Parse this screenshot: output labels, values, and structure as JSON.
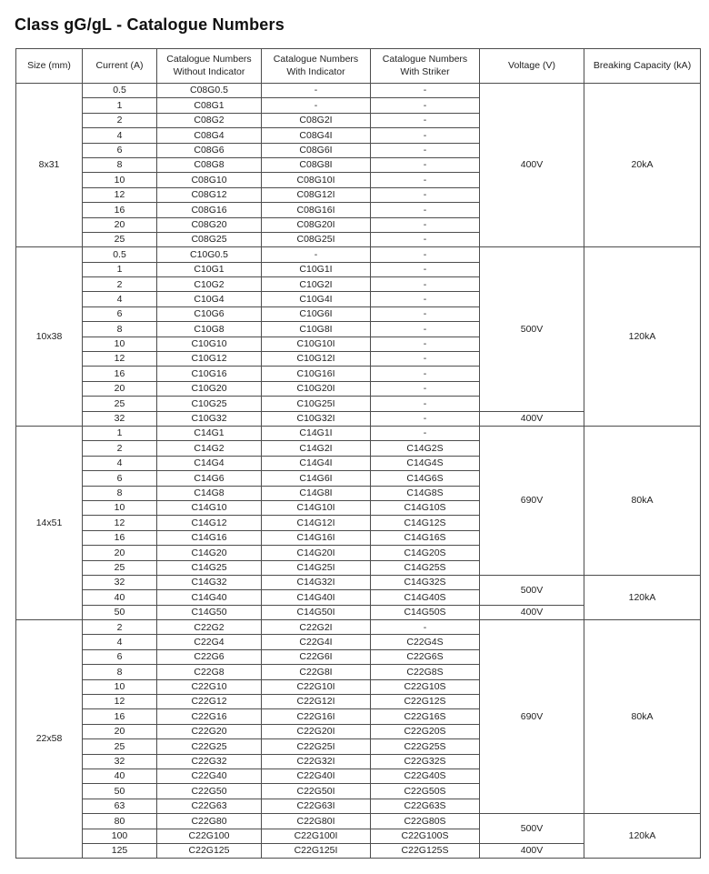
{
  "page": {
    "title": "Class gG/gL - Catalogue Numbers"
  },
  "colors": {
    "border": "#4d4d4d",
    "text": "#222222",
    "background": "#ffffff"
  },
  "table": {
    "headers": [
      "Size (mm)",
      "Current (A)",
      "Catalogue Numbers Without Indicator",
      "Catalogue Numbers With Indicator",
      "Catalogue Numbers With Striker",
      "Voltage (V)",
      "Breaking Capacity (kA)"
    ],
    "groups": [
      {
        "size": "8x31",
        "rows": [
          {
            "current": "0.5",
            "without_indicator": "C08G0.5",
            "with_indicator": "-",
            "with_striker": "-"
          },
          {
            "current": "1",
            "without_indicator": "C08G1",
            "with_indicator": "-",
            "with_striker": "-"
          },
          {
            "current": "2",
            "without_indicator": "C08G2",
            "with_indicator": "C08G2I",
            "with_striker": "-"
          },
          {
            "current": "4",
            "without_indicator": "C08G4",
            "with_indicator": "C08G4I",
            "with_striker": "-"
          },
          {
            "current": "6",
            "without_indicator": "C08G6",
            "with_indicator": "C08G6I",
            "with_striker": "-"
          },
          {
            "current": "8",
            "without_indicator": "C08G8",
            "with_indicator": "C08G8I",
            "with_striker": "-"
          },
          {
            "current": "10",
            "without_indicator": "C08G10",
            "with_indicator": "C08G10I",
            "with_striker": "-"
          },
          {
            "current": "12",
            "without_indicator": "C08G12",
            "with_indicator": "C08G12I",
            "with_striker": "-"
          },
          {
            "current": "16",
            "without_indicator": "C08G16",
            "with_indicator": "C08G16I",
            "with_striker": "-"
          },
          {
            "current": "20",
            "without_indicator": "C08G20",
            "with_indicator": "C08G20I",
            "with_striker": "-"
          },
          {
            "current": "25",
            "without_indicator": "C08G25",
            "with_indicator": "C08G25I",
            "with_striker": "-"
          }
        ],
        "voltage_spans": [
          {
            "label": "400V",
            "rows": 11
          }
        ],
        "breaking_spans": [
          {
            "label": "20kA",
            "rows": 11
          }
        ]
      },
      {
        "size": "10x38",
        "rows": [
          {
            "current": "0.5",
            "without_indicator": "C10G0.5",
            "with_indicator": "-",
            "with_striker": "-"
          },
          {
            "current": "1",
            "without_indicator": "C10G1",
            "with_indicator": "C10G1I",
            "with_striker": "-"
          },
          {
            "current": "2",
            "without_indicator": "C10G2",
            "with_indicator": "C10G2I",
            "with_striker": "-"
          },
          {
            "current": "4",
            "without_indicator": "C10G4",
            "with_indicator": "C10G4I",
            "with_striker": "-"
          },
          {
            "current": "6",
            "without_indicator": "C10G6",
            "with_indicator": "C10G6I",
            "with_striker": "-"
          },
          {
            "current": "8",
            "without_indicator": "C10G8",
            "with_indicator": "C10G8I",
            "with_striker": "-"
          },
          {
            "current": "10",
            "without_indicator": "C10G10",
            "with_indicator": "C10G10I",
            "with_striker": "-"
          },
          {
            "current": "12",
            "without_indicator": "C10G12",
            "with_indicator": "C10G12I",
            "with_striker": "-"
          },
          {
            "current": "16",
            "without_indicator": "C10G16",
            "with_indicator": "C10G16I",
            "with_striker": "-"
          },
          {
            "current": "20",
            "without_indicator": "C10G20",
            "with_indicator": "C10G20I",
            "with_striker": "-"
          },
          {
            "current": "25",
            "without_indicator": "C10G25",
            "with_indicator": "C10G25I",
            "with_striker": "-"
          },
          {
            "current": "32",
            "without_indicator": "C10G32",
            "with_indicator": "C10G32I",
            "with_striker": "-"
          }
        ],
        "voltage_spans": [
          {
            "label": "500V",
            "rows": 11
          },
          {
            "label": "400V",
            "rows": 1
          }
        ],
        "breaking_spans": [
          {
            "label": "120kA",
            "rows": 12
          }
        ]
      },
      {
        "size": "14x51",
        "rows": [
          {
            "current": "1",
            "without_indicator": "C14G1",
            "with_indicator": "C14G1I",
            "with_striker": "-"
          },
          {
            "current": "2",
            "without_indicator": "C14G2",
            "with_indicator": "C14G2I",
            "with_striker": "C14G2S"
          },
          {
            "current": "4",
            "without_indicator": "C14G4",
            "with_indicator": "C14G4I",
            "with_striker": "C14G4S"
          },
          {
            "current": "6",
            "without_indicator": "C14G6",
            "with_indicator": "C14G6I",
            "with_striker": "C14G6S"
          },
          {
            "current": "8",
            "without_indicator": "C14G8",
            "with_indicator": "C14G8I",
            "with_striker": "C14G8S"
          },
          {
            "current": "10",
            "without_indicator": "C14G10",
            "with_indicator": "C14G10I",
            "with_striker": "C14G10S"
          },
          {
            "current": "12",
            "without_indicator": "C14G12",
            "with_indicator": "C14G12I",
            "with_striker": "C14G12S"
          },
          {
            "current": "16",
            "without_indicator": "C14G16",
            "with_indicator": "C14G16I",
            "with_striker": "C14G16S"
          },
          {
            "current": "20",
            "without_indicator": "C14G20",
            "with_indicator": "C14G20I",
            "with_striker": "C14G20S"
          },
          {
            "current": "25",
            "without_indicator": "C14G25",
            "with_indicator": "C14G25I",
            "with_striker": "C14G25S"
          },
          {
            "current": "32",
            "without_indicator": "C14G32",
            "with_indicator": "C14G32I",
            "with_striker": "C14G32S"
          },
          {
            "current": "40",
            "without_indicator": "C14G40",
            "with_indicator": "C14G40I",
            "with_striker": "C14G40S"
          },
          {
            "current": "50",
            "without_indicator": "C14G50",
            "with_indicator": "C14G50I",
            "with_striker": "C14G50S"
          }
        ],
        "voltage_spans": [
          {
            "label": "690V",
            "rows": 10
          },
          {
            "label": "500V",
            "rows": 2
          },
          {
            "label": "400V",
            "rows": 1
          }
        ],
        "breaking_spans": [
          {
            "label": "80kA",
            "rows": 10
          },
          {
            "label": "120kA",
            "rows": 3
          }
        ]
      },
      {
        "size": "22x58",
        "rows": [
          {
            "current": "2",
            "without_indicator": "C22G2",
            "with_indicator": "C22G2I",
            "with_striker": "-"
          },
          {
            "current": "4",
            "without_indicator": "C22G4",
            "with_indicator": "C22G4I",
            "with_striker": "C22G4S"
          },
          {
            "current": "6",
            "without_indicator": "C22G6",
            "with_indicator": "C22G6I",
            "with_striker": "C22G6S"
          },
          {
            "current": "8",
            "without_indicator": "C22G8",
            "with_indicator": "C22G8I",
            "with_striker": "C22G8S"
          },
          {
            "current": "10",
            "without_indicator": "C22G10",
            "with_indicator": "C22G10I",
            "with_striker": "C22G10S"
          },
          {
            "current": "12",
            "without_indicator": "C22G12",
            "with_indicator": "C22G12I",
            "with_striker": "C22G12S"
          },
          {
            "current": "16",
            "without_indicator": "C22G16",
            "with_indicator": "C22G16I",
            "with_striker": "C22G16S"
          },
          {
            "current": "20",
            "without_indicator": "C22G20",
            "with_indicator": "C22G20I",
            "with_striker": "C22G20S"
          },
          {
            "current": "25",
            "without_indicator": "C22G25",
            "with_indicator": "C22G25I",
            "with_striker": "C22G25S"
          },
          {
            "current": "32",
            "without_indicator": "C22G32",
            "with_indicator": "C22G32I",
            "with_striker": "C22G32S"
          },
          {
            "current": "40",
            "without_indicator": "C22G40",
            "with_indicator": "C22G40I",
            "with_striker": "C22G40S"
          },
          {
            "current": "50",
            "without_indicator": "C22G50",
            "with_indicator": "C22G50I",
            "with_striker": "C22G50S"
          },
          {
            "current": "63",
            "without_indicator": "C22G63",
            "with_indicator": "C22G63I",
            "with_striker": "C22G63S"
          },
          {
            "current": "80",
            "without_indicator": "C22G80",
            "with_indicator": "C22G80I",
            "with_striker": "C22G80S"
          },
          {
            "current": "100",
            "without_indicator": "C22G100",
            "with_indicator": "C22G100I",
            "with_striker": "C22G100S"
          },
          {
            "current": "125",
            "without_indicator": "C22G125",
            "with_indicator": "C22G125I",
            "with_striker": "C22G125S"
          }
        ],
        "voltage_spans": [
          {
            "label": "690V",
            "rows": 13
          },
          {
            "label": "500V",
            "rows": 2
          },
          {
            "label": "400V",
            "rows": 1
          }
        ],
        "breaking_spans": [
          {
            "label": "80kA",
            "rows": 13
          },
          {
            "label": "120kA",
            "rows": 3
          }
        ]
      }
    ]
  }
}
